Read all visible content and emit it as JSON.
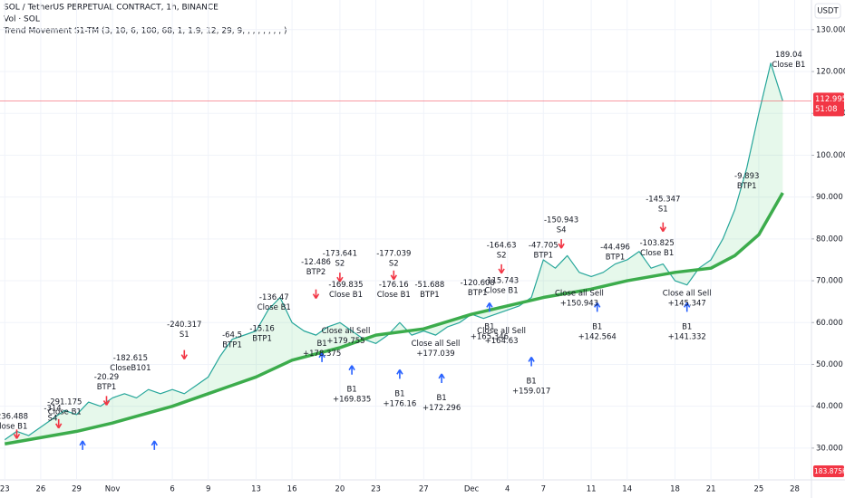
{
  "header": {
    "title": "SOL / TetherUS PERPETUAL CONTRACT, 1h, BINANCE",
    "volume": "Vol · SOL",
    "indicator": "Trend Movement S1-TM (3, 10, 6, 100, 68, 1, 1.9, 12, 29, 9, , , , , , , , )",
    "currency": "USDT"
  },
  "chart_data": {
    "type": "line",
    "ylim": [
      22.4,
      137.1
    ],
    "xlim": [
      -0.4,
      67.4
    ],
    "yticks": [
      {
        "value": 30,
        "label": "30.000"
      },
      {
        "value": 40,
        "label": "40.000"
      },
      {
        "value": 50,
        "label": "50.000"
      },
      {
        "value": 60,
        "label": "60.000"
      },
      {
        "value": 70,
        "label": "70.000"
      },
      {
        "value": 80,
        "label": "80.000"
      },
      {
        "value": 90,
        "label": "90.000"
      },
      {
        "value": 100,
        "label": "100.000"
      },
      {
        "value": 110,
        "label": "110.000"
      },
      {
        "value": 120,
        "label": "120.000"
      },
      {
        "value": 130,
        "label": "130.000"
      }
    ],
    "xticks": [
      {
        "value": 0,
        "label": "23"
      },
      {
        "value": 3,
        "label": "26"
      },
      {
        "value": 6,
        "label": "29"
      },
      {
        "value": 9,
        "label": "Nov"
      },
      {
        "value": 14,
        "label": "6"
      },
      {
        "value": 17,
        "label": "9"
      },
      {
        "value": 21,
        "label": "13"
      },
      {
        "value": 24,
        "label": "16"
      },
      {
        "value": 28,
        "label": "20"
      },
      {
        "value": 31,
        "label": "23"
      },
      {
        "value": 35,
        "label": "27"
      },
      {
        "value": 39,
        "label": "Dec"
      },
      {
        "value": 42,
        "label": "4"
      },
      {
        "value": 45,
        "label": "7"
      },
      {
        "value": 49,
        "label": "11"
      },
      {
        "value": 52,
        "label": "14"
      },
      {
        "value": 56,
        "label": "18"
      },
      {
        "value": 59,
        "label": "21"
      },
      {
        "value": 63,
        "label": "25"
      },
      {
        "value": 66,
        "label": "28"
      }
    ],
    "grid": true,
    "series": [
      {
        "name": "SOL",
        "color": "#26a69a",
        "x": [
          0,
          1,
          2,
          3,
          4,
          5,
          6,
          7,
          8,
          9,
          10,
          11,
          12,
          13,
          14,
          15,
          16,
          17,
          18,
          19,
          20,
          21,
          22,
          23,
          24,
          25,
          26,
          27,
          28,
          29,
          30,
          31,
          32,
          33,
          34,
          35,
          36,
          37,
          38,
          39,
          40,
          41,
          42,
          43,
          44,
          45,
          46,
          47,
          48,
          49,
          50,
          51,
          52,
          53,
          54,
          55,
          56,
          57,
          58,
          59,
          60,
          61,
          62,
          63,
          64,
          65
        ],
        "values": [
          32,
          34,
          33,
          35,
          37,
          39,
          38,
          41,
          40,
          42,
          43,
          42,
          44,
          43,
          44,
          43,
          45,
          47,
          52,
          56,
          57,
          58,
          63,
          66,
          60,
          58,
          57,
          59,
          60,
          58,
          56,
          55,
          57,
          60,
          57,
          58,
          57,
          59,
          60,
          62,
          61,
          62,
          63,
          64,
          66,
          75,
          73,
          76,
          72,
          71,
          72,
          74,
          75,
          77,
          73,
          74,
          70,
          69,
          73,
          75,
          80,
          87,
          97,
          110,
          122,
          113
        ]
      },
      {
        "name": "MA",
        "color": "#3cac4c",
        "x": [
          0,
          6,
          9,
          14,
          17,
          21,
          24,
          28,
          31,
          35,
          39,
          42,
          45,
          49,
          52,
          56,
          59,
          61,
          63,
          64,
          65
        ],
        "values": [
          31,
          34,
          36,
          40,
          43,
          47,
          51,
          54,
          57,
          58.5,
          62,
          64,
          66,
          68,
          70,
          72,
          73,
          76,
          81,
          86,
          91
        ]
      }
    ],
    "last_price": {
      "value": 112.995,
      "label": "112.995",
      "timer": "51:08",
      "color": "#f23645"
    },
    "last_volume": "183.875K",
    "annotations": [
      {
        "x": 0.5,
        "y": 37.5,
        "lines": [
          "-236.488",
          "Close B1"
        ]
      },
      {
        "x": 4,
        "y": 39.5,
        "lines": [
          "-314",
          "S4"
        ]
      },
      {
        "x": 5,
        "y": 41,
        "lines": [
          "-291.175",
          "Close B1"
        ]
      },
      {
        "x": 8.5,
        "y": 47,
        "lines": [
          "-20.29",
          "BTP1"
        ]
      },
      {
        "x": 10.5,
        "y": 51.5,
        "lines": [
          "-182.615",
          "CloseB101"
        ]
      },
      {
        "x": 15,
        "y": 59.5,
        "lines": [
          "-240.317",
          "S1"
        ]
      },
      {
        "x": 19,
        "y": 57,
        "lines": [
          "-64.5",
          "BTP1"
        ]
      },
      {
        "x": 21.5,
        "y": 58.5,
        "lines": [
          "-15.16",
          "BTP1"
        ]
      },
      {
        "x": 22.5,
        "y": 66,
        "lines": [
          "-136.47",
          "Close B1"
        ]
      },
      {
        "x": 26,
        "y": 74.5,
        "lines": [
          "-12.486",
          "BTP2"
        ]
      },
      {
        "x": 28.5,
        "y": 69,
        "lines": [
          "-169.835",
          "Close B1"
        ]
      },
      {
        "x": 28,
        "y": 76.5,
        "lines": [
          "-173.641",
          "S2"
        ]
      },
      {
        "x": 32.5,
        "y": 76.5,
        "lines": [
          "-177.039",
          "S2"
        ]
      },
      {
        "x": 32.5,
        "y": 69,
        "lines": [
          "-176.16",
          "Close B1"
        ]
      },
      {
        "x": 35.5,
        "y": 69,
        "lines": [
          "-51.688",
          "BTP1"
        ]
      },
      {
        "x": 39.5,
        "y": 69.5,
        "lines": [
          "-120.608",
          "BTP1"
        ]
      },
      {
        "x": 41.5,
        "y": 78.5,
        "lines": [
          "-164.63",
          "S2"
        ]
      },
      {
        "x": 41.5,
        "y": 70,
        "lines": [
          "-115.743",
          "Close B1"
        ]
      },
      {
        "x": 46.5,
        "y": 84.5,
        "lines": [
          "-150.943",
          "S4"
        ]
      },
      {
        "x": 45,
        "y": 78.5,
        "lines": [
          "-47.705",
          "BTP1"
        ]
      },
      {
        "x": 51,
        "y": 78,
        "lines": [
          "-44.496",
          "BTP1"
        ]
      },
      {
        "x": 55,
        "y": 89.5,
        "lines": [
          "-145.347",
          "S1"
        ]
      },
      {
        "x": 54.5,
        "y": 79,
        "lines": [
          "-103.825",
          "Close B1"
        ]
      },
      {
        "x": 62,
        "y": 95,
        "lines": [
          "-9.893",
          "BTP1"
        ]
      },
      {
        "x": 65.5,
        "y": 124,
        "lines": [
          "189.04",
          "Close B1"
        ]
      },
      {
        "x": 26.5,
        "y": 55,
        "lines": [
          "B1",
          "+178.375"
        ]
      },
      {
        "x": 28.5,
        "y": 58,
        "lines": [
          "Close all Sell",
          "+179.755"
        ]
      },
      {
        "x": 29,
        "y": 44,
        "lines": [
          "B1",
          "+169.835"
        ]
      },
      {
        "x": 33,
        "y": 43,
        "lines": [
          "B1",
          "+176.16"
        ]
      },
      {
        "x": 36,
        "y": 55,
        "lines": [
          "Close all Sell",
          "+177.039"
        ]
      },
      {
        "x": 36.5,
        "y": 42,
        "lines": [
          "B1",
          "+172.296"
        ]
      },
      {
        "x": 41.5,
        "y": 58,
        "lines": [
          "Close all Sell",
          "+164.63"
        ]
      },
      {
        "x": 40.5,
        "y": 59,
        "lines": [
          "B1",
          "+165.346"
        ]
      },
      {
        "x": 44,
        "y": 46,
        "lines": [
          "B1",
          "+159.017"
        ]
      },
      {
        "x": 48,
        "y": 67,
        "lines": [
          "Close all Sell",
          "+150.943"
        ]
      },
      {
        "x": 49.5,
        "y": 59,
        "lines": [
          "B1",
          "+142.564"
        ]
      },
      {
        "x": 57,
        "y": 67,
        "lines": [
          "Close all Sell",
          "+145.347"
        ]
      },
      {
        "x": 57,
        "y": 59,
        "lines": [
          "B1",
          "+141.332"
        ]
      }
    ],
    "signals": [
      {
        "x": 1,
        "y": 34,
        "kind": "sell"
      },
      {
        "x": 4.5,
        "y": 36.5,
        "kind": "sell"
      },
      {
        "x": 8.5,
        "y": 42,
        "kind": "sell"
      },
      {
        "x": 15,
        "y": 53,
        "kind": "sell"
      },
      {
        "x": 26,
        "y": 67.5,
        "kind": "sell"
      },
      {
        "x": 28,
        "y": 71.5,
        "kind": "sell"
      },
      {
        "x": 32.5,
        "y": 72,
        "kind": "sell"
      },
      {
        "x": 41.5,
        "y": 73.5,
        "kind": "sell"
      },
      {
        "x": 46.5,
        "y": 79.5,
        "kind": "sell"
      },
      {
        "x": 55,
        "y": 83.5,
        "kind": "sell"
      },
      {
        "x": 6.5,
        "y": 30,
        "kind": "buy"
      },
      {
        "x": 12.5,
        "y": 30,
        "kind": "buy"
      },
      {
        "x": 26.5,
        "y": 51,
        "kind": "buy"
      },
      {
        "x": 29,
        "y": 48,
        "kind": "buy"
      },
      {
        "x": 33,
        "y": 47,
        "kind": "buy"
      },
      {
        "x": 36.5,
        "y": 46,
        "kind": "buy"
      },
      {
        "x": 44,
        "y": 50,
        "kind": "buy"
      },
      {
        "x": 49.5,
        "y": 63,
        "kind": "buy"
      },
      {
        "x": 57,
        "y": 63,
        "kind": "buy"
      },
      {
        "x": 40.5,
        "y": 63,
        "kind": "buy"
      }
    ]
  }
}
